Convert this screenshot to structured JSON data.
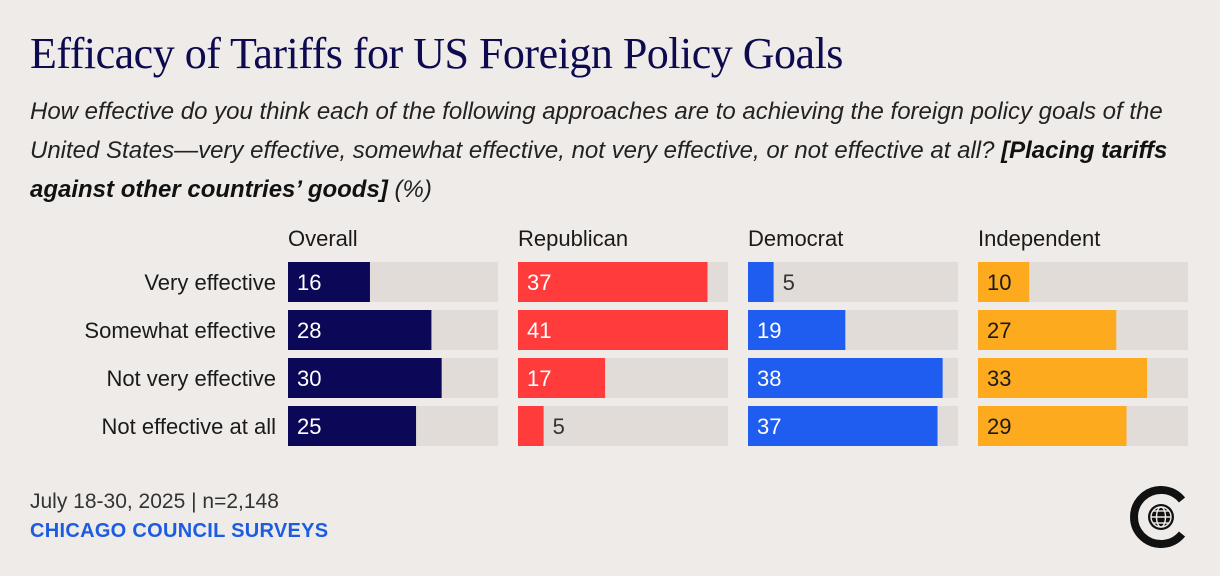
{
  "title": "Efficacy of Tariffs for US Foreign Policy Goals",
  "subtitle_main": "How effective do you think each of the following approaches are to achieving the foreign policy goals of the United States—very effective, somewhat effective, not very effective, or not effective at all?",
  "subtitle_emphasis": "[Placing tariffs against other countries’ goods]",
  "subtitle_unit": "(%)",
  "footer": {
    "date_line": "July 18-30, 2025 | n=2,148",
    "brand": "CHICAGO COUNCIL SURVEYS"
  },
  "logo_icon": "chicago-council-logo-icon",
  "chart_data": {
    "type": "bar",
    "orientation": "horizontal",
    "layout": "small-multiples",
    "categories": [
      "Very effective",
      "Somewhat effective",
      "Not very effective",
      "Not effective at all"
    ],
    "xlim": [
      0,
      41
    ],
    "series": [
      {
        "name": "Overall",
        "values": [
          16,
          28,
          30,
          25
        ],
        "color": "#0b0857"
      },
      {
        "name": "Republican",
        "values": [
          37,
          41,
          17,
          5
        ],
        "color": "#ff3b3b"
      },
      {
        "name": "Democrat",
        "values": [
          5,
          19,
          38,
          37
        ],
        "color": "#1f5cf0"
      },
      {
        "name": "Independent",
        "values": [
          10,
          27,
          33,
          29
        ],
        "color": "#fdaa1e"
      }
    ],
    "track_color": "#e1dcd8"
  }
}
